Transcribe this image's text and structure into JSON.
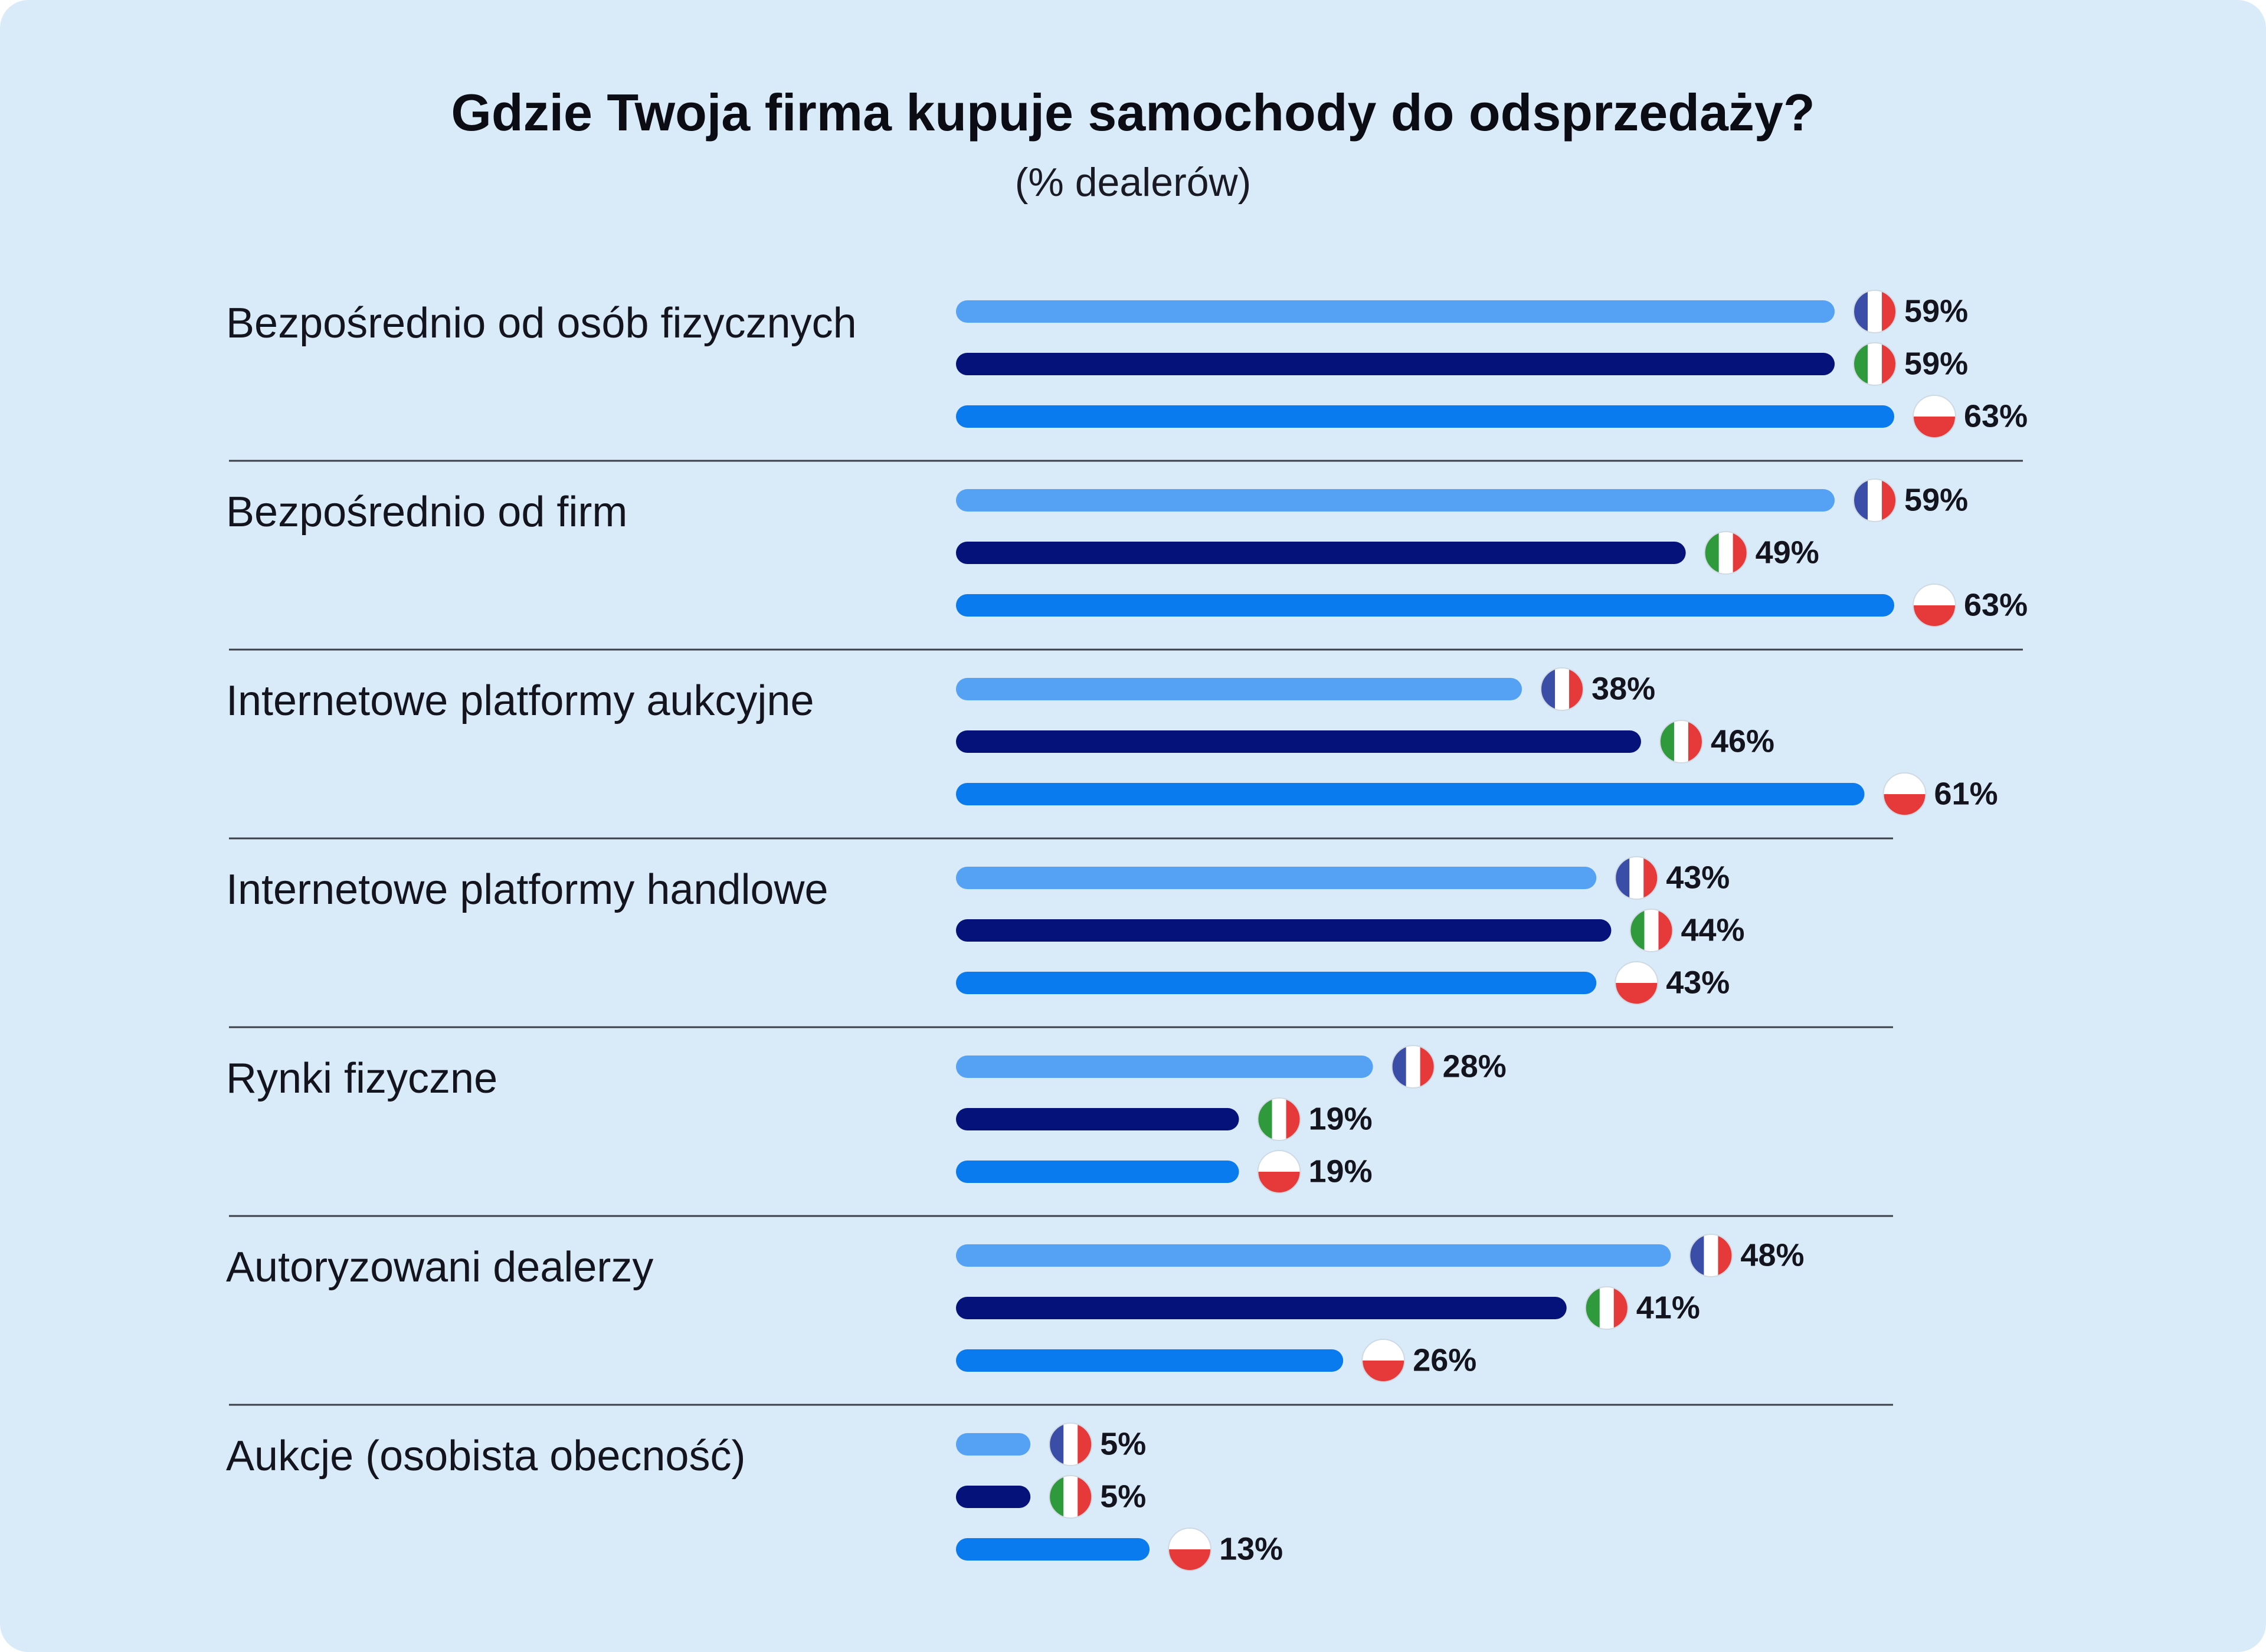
{
  "chart_data": {
    "type": "bar",
    "orientation": "horizontal",
    "title": "Gdzie Twoja firma kupuje samochody do odsprzedaży?",
    "subtitle": "(% dealerów)",
    "categories": [
      "Bezpośrednio od osób fizycznych",
      "Bezpośrednio od firm",
      "Internetowe platformy aukcyjne",
      "Internetowe platformy handlowe",
      "Rynki fizyczne",
      "Autoryzowani dealerzy",
      "Aukcje (osobista obecność)"
    ],
    "series": [
      {
        "flag": "france-flag-icon",
        "color": "#55a2f5",
        "values": [
          59,
          59,
          38,
          43,
          28,
          48,
          5
        ]
      },
      {
        "flag": "italy-flag-icon",
        "color": "#04127a",
        "values": [
          59,
          49,
          46,
          44,
          19,
          41,
          5
        ]
      },
      {
        "flag": "poland-flag-icon",
        "color": "#0a7aef",
        "values": [
          63,
          63,
          61,
          43,
          19,
          26,
          13
        ]
      }
    ],
    "value_suffix": "%",
    "xlim": [
      0,
      63
    ],
    "grid": false,
    "legend": "none"
  }
}
